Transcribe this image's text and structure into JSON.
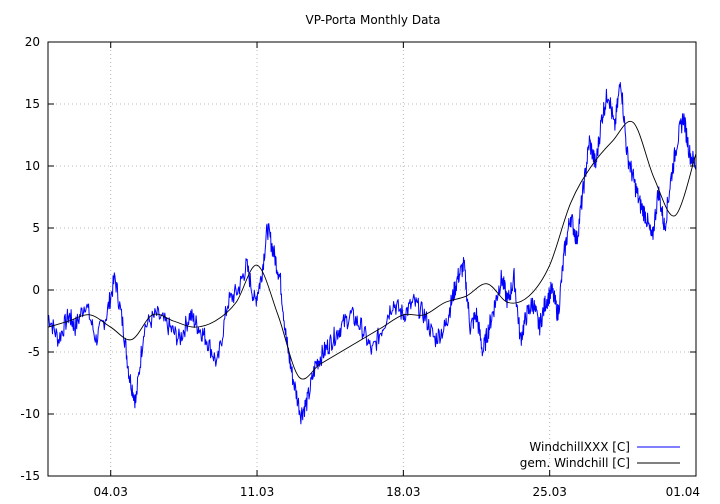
{
  "chart_data": {
    "type": "line",
    "title": "VP-Porta Monthly Data",
    "xlabel": "",
    "ylabel": "",
    "x_domain_days": [
      0,
      31
    ],
    "xlim": [
      "01.03",
      "01.04"
    ],
    "x_ticks": [
      {
        "label": "04.03",
        "day": 3
      },
      {
        "label": "11.03",
        "day": 10
      },
      {
        "label": "18.03",
        "day": 17
      },
      {
        "label": "25.03",
        "day": 24
      },
      {
        "label": "01.04",
        "day": 31
      }
    ],
    "ylim": [
      -15,
      20
    ],
    "y_ticks": [
      -15,
      -10,
      -5,
      0,
      5,
      10,
      15,
      20
    ],
    "grid": true,
    "legend_position": "bottom-right",
    "series": [
      {
        "name": "WindchillXXX [C]",
        "color": "#0000ff",
        "style": "raw",
        "x": [
          0,
          0.5,
          1,
          1.3,
          1.8,
          2.3,
          2.8,
          3.2,
          3.6,
          3.9,
          4.2,
          4.6,
          5.2,
          5.8,
          6.3,
          6.8,
          7.2,
          7.6,
          8.1,
          8.6,
          9.1,
          9.5,
          9.9,
          10.2,
          10.5,
          10.8,
          11.1,
          11.4,
          11.7,
          12.1,
          12.4,
          12.8,
          13.2,
          13.6,
          14.0,
          14.5,
          15.0,
          15.5,
          16.0,
          16.5,
          17.0,
          17.5,
          18.0,
          18.5,
          19.0,
          19.3,
          19.6,
          19.9,
          20.2,
          20.5,
          20.8,
          21.1,
          21.4,
          21.7,
          22.0,
          22.3,
          22.6,
          22.9,
          23.2,
          23.5,
          23.8,
          24.1,
          24.4,
          24.7,
          25.0,
          25.3,
          25.6,
          25.9,
          26.2,
          26.5,
          26.8,
          27.1,
          27.4,
          27.7,
          28.0,
          28.3,
          28.6,
          28.9,
          29.2,
          29.5,
          29.8,
          30.1,
          30.4,
          30.7,
          31.0
        ],
        "y": [
          -2,
          -4,
          -2,
          -3,
          -1,
          -4,
          -2,
          1,
          -3,
          -7,
          -9,
          -3,
          -2,
          -3,
          -4,
          -2,
          -3,
          -4,
          -6,
          -1,
          0,
          2,
          -1,
          1,
          5,
          3,
          1,
          -4,
          -7,
          -10,
          -9,
          -6,
          -5,
          -4,
          -3,
          -2,
          -3,
          -5,
          -3,
          -1,
          -2,
          -1,
          -2,
          -4,
          -3,
          -1,
          1,
          2,
          -3,
          -2,
          -5,
          -3,
          -1,
          1,
          -1,
          1,
          -4,
          -2,
          -1,
          -3,
          -1,
          0,
          -2,
          3,
          6,
          4,
          8,
          12,
          10,
          14,
          16,
          13,
          17,
          11,
          9,
          7,
          6,
          4,
          8,
          5,
          9,
          12,
          14,
          11,
          10
        ]
      },
      {
        "name": "gem. Windchill [C]",
        "color": "#000000",
        "style": "smoothed",
        "x": [
          0,
          1,
          2,
          3,
          4,
          5,
          6,
          7,
          8,
          9,
          10,
          11,
          12,
          13,
          14,
          15,
          16,
          17,
          18,
          19,
          20,
          21,
          22,
          23,
          24,
          25,
          26,
          27,
          28,
          29,
          30,
          31
        ],
        "y": [
          -3,
          -2.5,
          -2,
          -3,
          -4,
          -2,
          -2.5,
          -3,
          -2.5,
          -1,
          2,
          -2,
          -7,
          -6,
          -5,
          -4,
          -3,
          -2,
          -2,
          -1,
          -0.5,
          0.5,
          -1,
          -0.5,
          2,
          7,
          10,
          12,
          13.5,
          9,
          6,
          11
        ]
      }
    ]
  }
}
